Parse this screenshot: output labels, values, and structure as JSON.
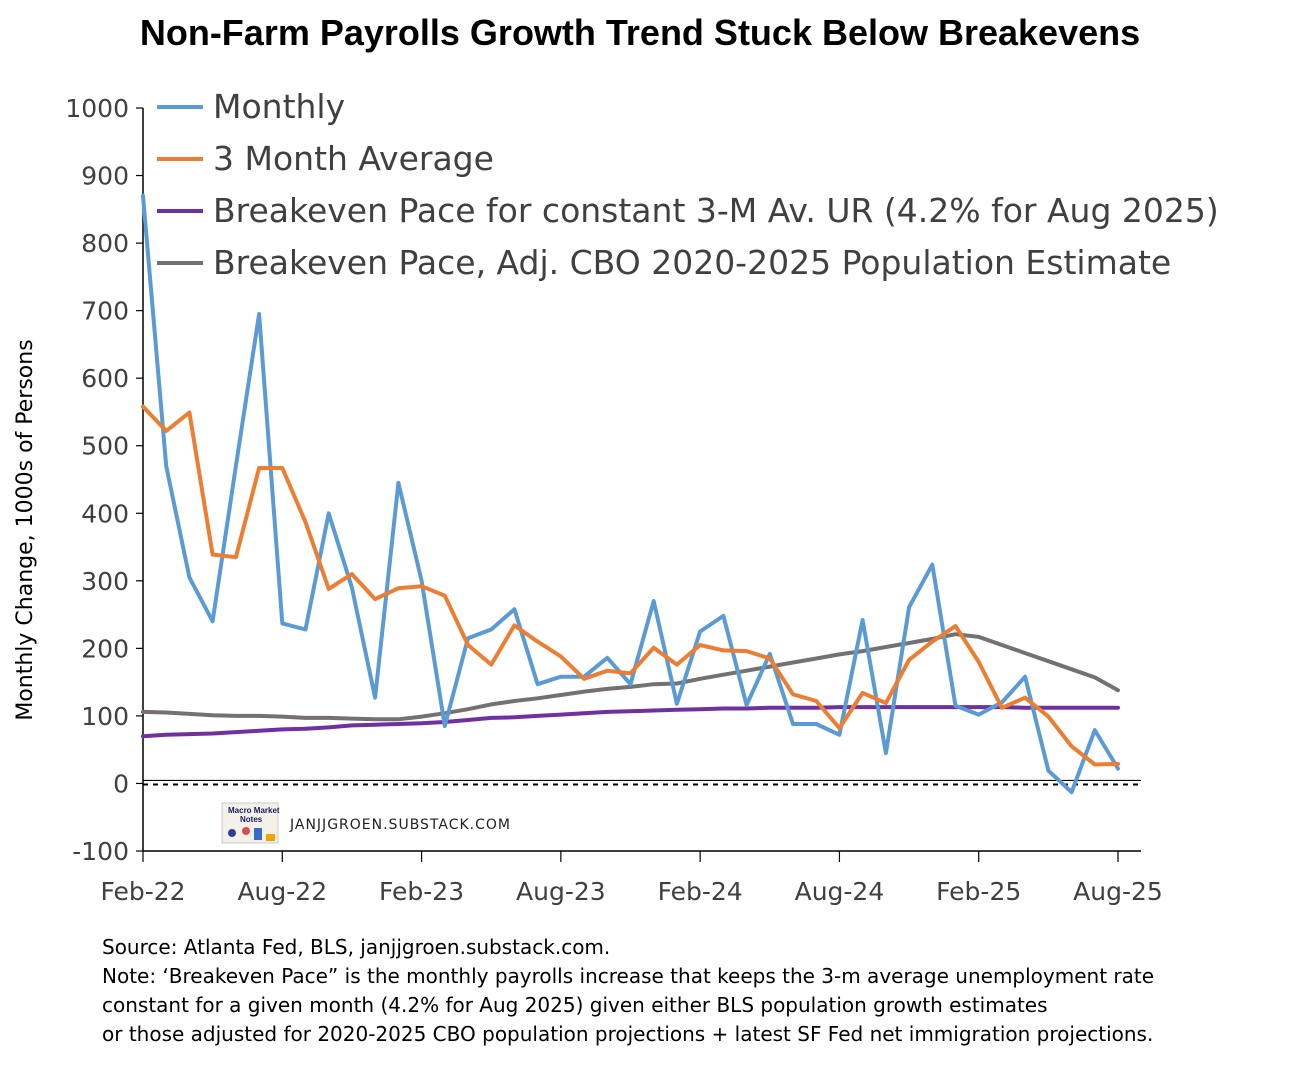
{
  "title": "Non-Farm Payrolls Growth Trend Stuck Below Breakevens",
  "chart_data": {
    "type": "line",
    "ylabel": "Monthly Change, 1000s of Persons",
    "ylim": [
      -100,
      1000
    ],
    "yticks": [
      -100,
      0,
      100,
      200,
      300,
      400,
      500,
      600,
      700,
      800,
      900,
      1000
    ],
    "xlim": [
      0,
      42
    ],
    "xticks": [
      {
        "pos": 0,
        "label": "Feb-22"
      },
      {
        "pos": 6,
        "label": "Aug-22"
      },
      {
        "pos": 12,
        "label": "Feb-23"
      },
      {
        "pos": 18,
        "label": "Aug-23"
      },
      {
        "pos": 24,
        "label": "Feb-24"
      },
      {
        "pos": 30,
        "label": "Aug-24"
      },
      {
        "pos": 36,
        "label": "Feb-25"
      },
      {
        "pos": 42,
        "label": "Aug-25"
      }
    ],
    "series": [
      {
        "name": "Monthly",
        "color": "#5B9BD5",
        "values": [
          870,
          470,
          305,
          240,
          470,
          695,
          237,
          228,
          400,
          290,
          127,
          445,
          300,
          85,
          215,
          228,
          258,
          147,
          158,
          158,
          186,
          147,
          270,
          118,
          225,
          248,
          116,
          192,
          88,
          88,
          72,
          242,
          45,
          261,
          324,
          115,
          102,
          120,
          158,
          19,
          -13,
          79,
          22
        ]
      },
      {
        "name": "3 Month Average",
        "color": "#ED7D31",
        "values": [
          558,
          522,
          549,
          339,
          335,
          467,
          467,
          387,
          288,
          310,
          273,
          289,
          292,
          278,
          205,
          176,
          234,
          210,
          188,
          155,
          167,
          163,
          201,
          176,
          205,
          197,
          196,
          185,
          132,
          122,
          82,
          134,
          119,
          183,
          210,
          233,
          180,
          112,
          127,
          99,
          55,
          28,
          29
        ]
      },
      {
        "name": "Breakeven Pace for constant 3-M Av. UR (4.2% for Aug 2025)",
        "color": "#7030A0",
        "values": [
          70,
          72,
          73,
          74,
          76,
          78,
          80,
          81,
          83,
          86,
          87,
          88,
          89,
          91,
          94,
          97,
          98,
          100,
          102,
          104,
          106,
          107,
          108,
          109,
          110,
          111,
          111,
          112,
          112,
          112,
          113,
          113,
          113,
          113,
          113,
          113,
          113,
          113,
          112,
          112,
          112,
          112,
          112
        ]
      },
      {
        "name": "Breakeven Pace, Adj. CBO 2020-2025 Population Estimate",
        "color": "#767171",
        "values": [
          106,
          105,
          103,
          101,
          100,
          100,
          99,
          97,
          97,
          96,
          95,
          95,
          99,
          104,
          110,
          117,
          122,
          126,
          131,
          136,
          140,
          143,
          147,
          148,
          155,
          161,
          167,
          173,
          179,
          185,
          191,
          196,
          202,
          208,
          214,
          221,
          217,
          205,
          193,
          181,
          169,
          157,
          138
        ]
      }
    ]
  },
  "watermark": {
    "logo_text": "Macro Market Notes",
    "text": "JANJJGROEN.SUBSTACK.COM"
  },
  "notes": {
    "source": "Source: Atlanta Fed, BLS, janjjgroen.substack.com.",
    "note_lines": [
      "Note: ‘Breakeven Pace” is the monthly payrolls increase that keeps the 3-m average unemployment rate",
      "constant for a given month (4.2% for Aug 2025) given either BLS population growth estimates",
      "or those adjusted for 2020-2025 CBO population projections + latest SF Fed net immigration projections."
    ]
  }
}
